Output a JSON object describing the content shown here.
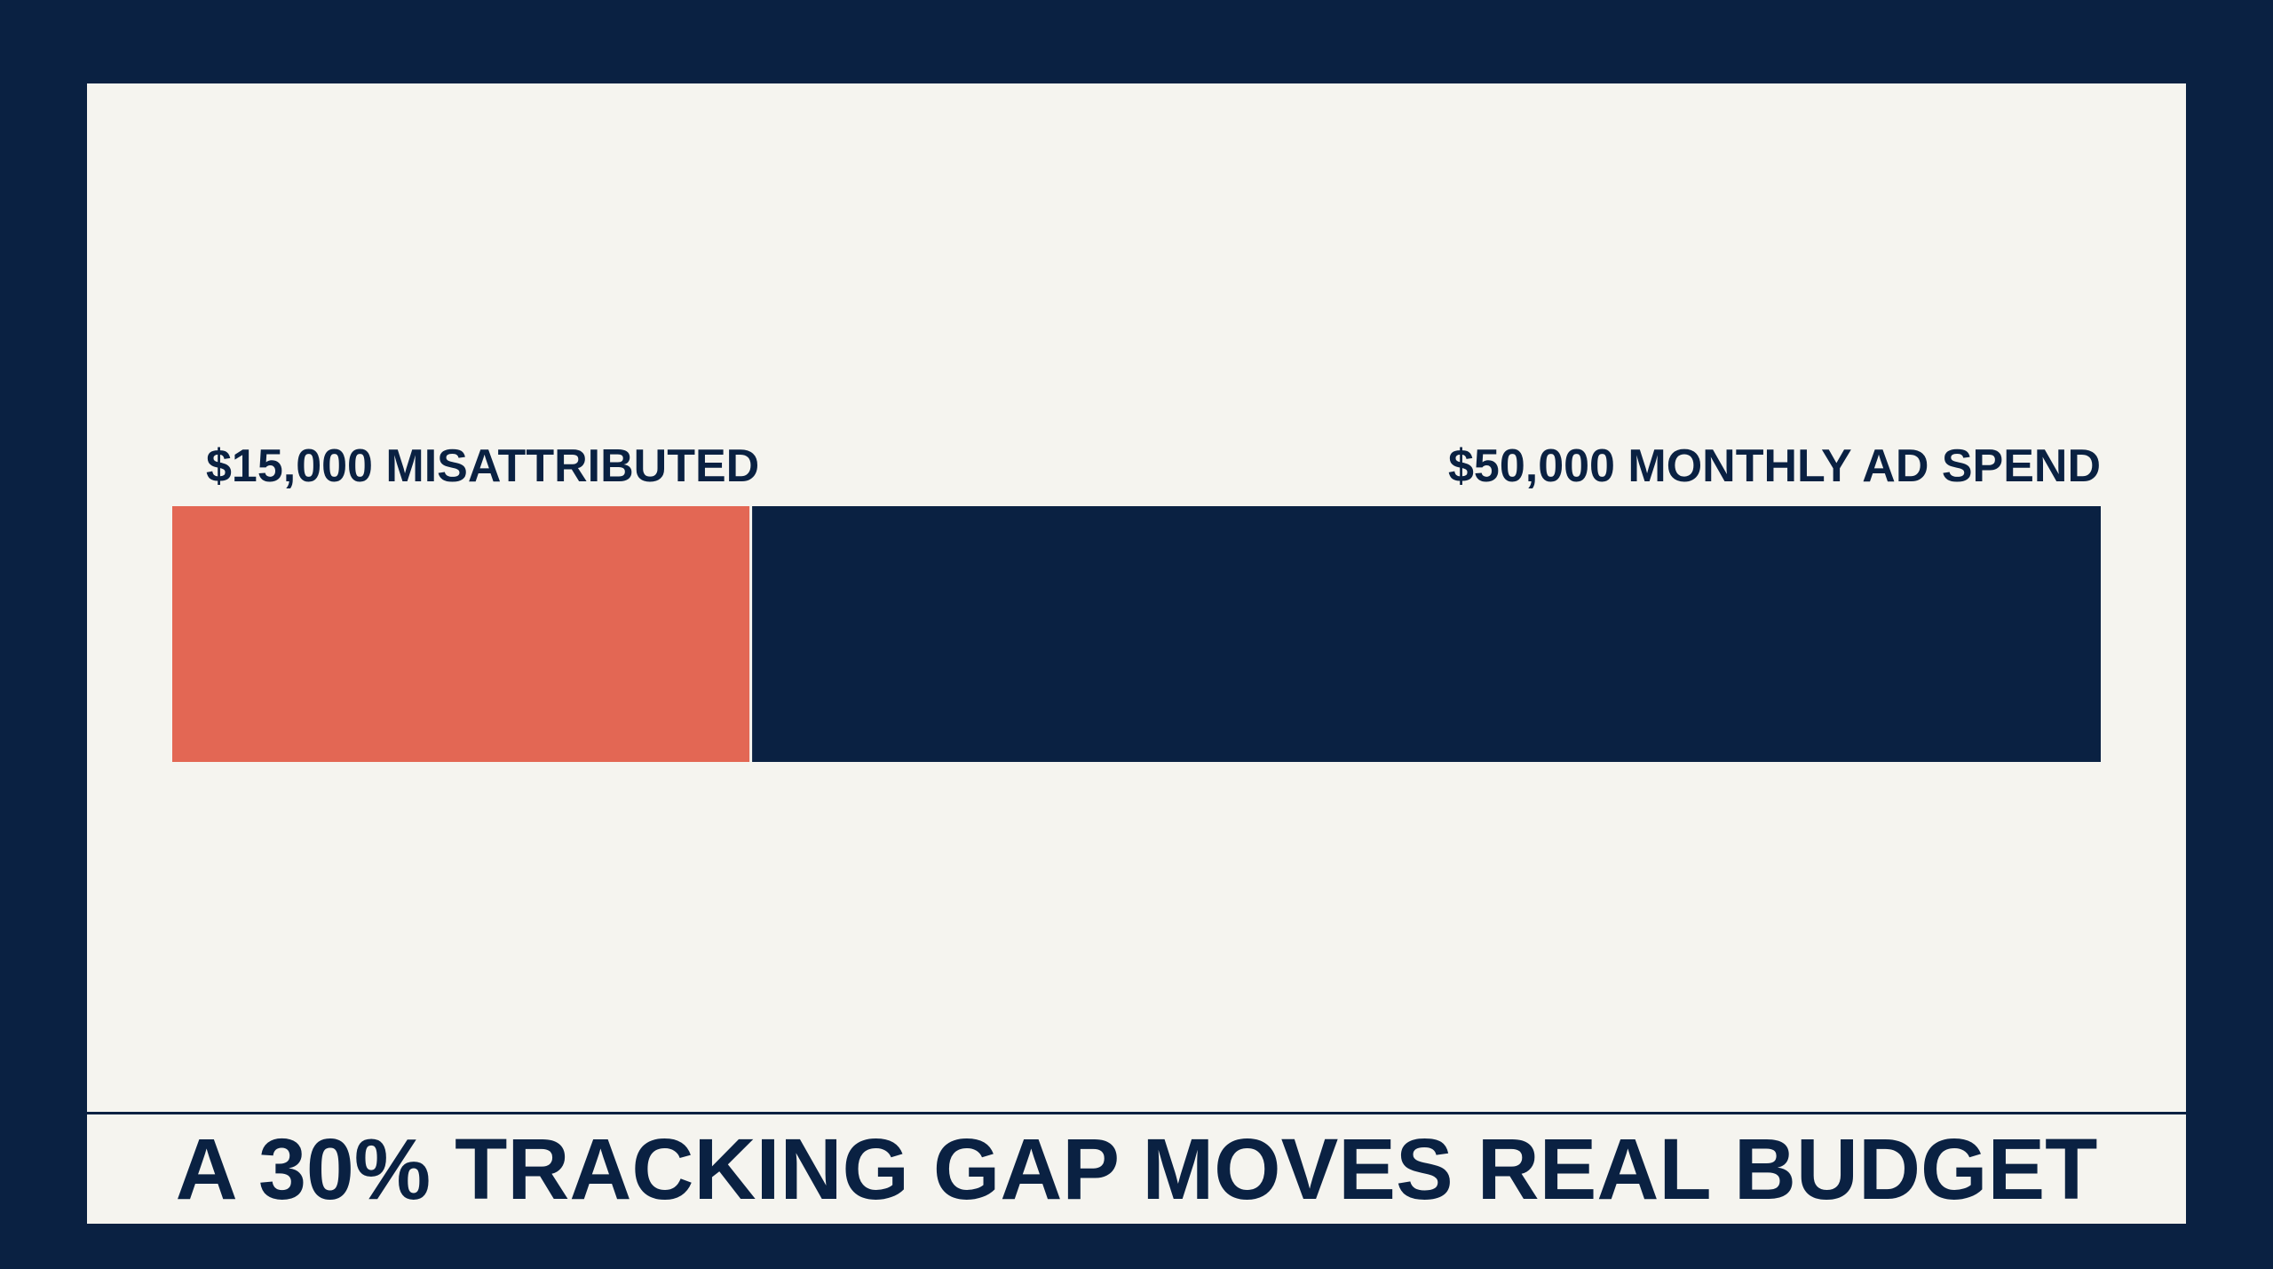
{
  "headline": "A 30% TRACKING GAP MOVES REAL BUDGET",
  "colors": {
    "background": "#0a2142",
    "panel": "#f5f4ef",
    "misattributed": "#e36754",
    "total": "#0a2142",
    "text": "#0a2142"
  },
  "chart_data": {
    "type": "bar",
    "orientation": "horizontal-stacked",
    "title": "",
    "xlabel": "",
    "ylabel": "",
    "xlim": [
      0,
      50000
    ],
    "grid": false,
    "legend": "none",
    "total": 50000,
    "segments": [
      {
        "value": 15000,
        "label": "$15,000 MISATTRIBUTED",
        "color": "#e36754"
      },
      {
        "value": 35000,
        "label": "",
        "color": "#0a2142"
      }
    ],
    "total_label": "$50,000 MONTHLY AD SPEND"
  }
}
